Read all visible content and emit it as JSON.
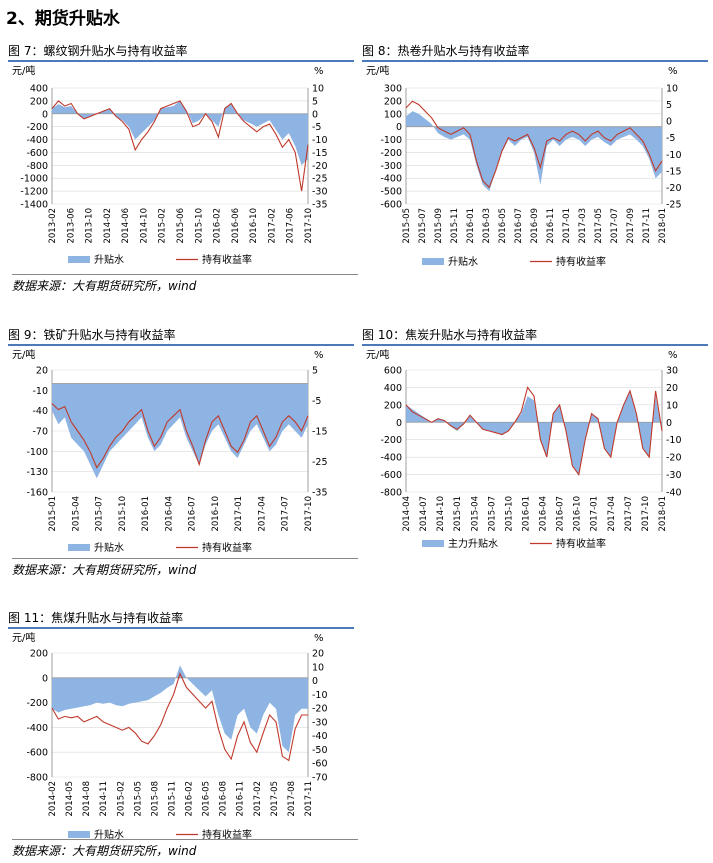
{
  "page": {
    "section_title": "2、期货升贴水"
  },
  "colors": {
    "basis_fill": "#8eb4e3",
    "return_line": "#c0392b",
    "grid": "#d9d9d9",
    "title_rule": "#4a7ab8"
  },
  "figures": [
    {
      "id": "fig7",
      "title": "图 7：螺纹钢升贴水与持有收益率",
      "source": "数据来源：大有期货研究所，wind",
      "chart_data": {
        "type": "area",
        "left_unit": "元/吨",
        "right_unit": "%",
        "ylim": [
          -1400,
          400
        ],
        "y2lim": [
          -35,
          10
        ],
        "yticks": [
          "400",
          "200",
          "0",
          "-200",
          "-400",
          "-600",
          "-800",
          "-1000",
          "-1200",
          "-1400"
        ],
        "y2ticks": [
          "10",
          "5",
          "0",
          "-5",
          "-10",
          "-15",
          "-20",
          "-25",
          "-30",
          "-35"
        ],
        "xticks": [
          "2013-02",
          "2013-06",
          "2013-10",
          "2014-02",
          "2014-06",
          "2014-10",
          "2015-02",
          "2015-06",
          "2015-10",
          "2016-02",
          "2016-06",
          "2016-10",
          "2017-02",
          "2017-06",
          "2017-10"
        ],
        "series": [
          {
            "name": "升贴水",
            "kind": "area",
            "axis": "left",
            "values": [
              80,
              150,
              100,
              120,
              0,
              -80,
              -50,
              0,
              50,
              80,
              -50,
              -100,
              -200,
              -400,
              -300,
              -200,
              -100,
              80,
              100,
              120,
              200,
              60,
              -150,
              -100,
              0,
              -100,
              -200,
              100,
              150,
              0,
              -100,
              -150,
              -200,
              -150,
              -100,
              -250,
              -400,
              -300,
              -500,
              -800,
              -700
            ]
          },
          {
            "name": "持有收益率",
            "kind": "line",
            "axis": "right",
            "values": [
              2,
              5,
              3,
              4,
              0,
              -2,
              -1,
              0,
              1,
              2,
              -1,
              -3,
              -6,
              -14,
              -10,
              -7,
              -3,
              2,
              3,
              4,
              5,
              1,
              -5,
              -4,
              0,
              -3,
              -9,
              2,
              4,
              0,
              -3,
              -5,
              -7,
              -5,
              -4,
              -8,
              -13,
              -10,
              -15,
              -30,
              -12
            ]
          }
        ]
      }
    },
    {
      "id": "fig8",
      "title": "图 8：热卷升贴水与持有收益率",
      "source": "",
      "chart_data": {
        "type": "area",
        "left_unit": "元/吨",
        "right_unit": "%",
        "ylim": [
          -600,
          300
        ],
        "y2lim": [
          -25,
          10
        ],
        "yticks": [
          "300",
          "200",
          "100",
          "0",
          "-100",
          "-200",
          "-300",
          "-400",
          "-500",
          "-600"
        ],
        "y2ticks": [
          "10",
          "5",
          "0",
          "-5",
          "-10",
          "-15",
          "-20",
          "-25"
        ],
        "xticks": [
          "2015-05",
          "2015-07",
          "2015-09",
          "2015-11",
          "2016-01",
          "2016-03",
          "2016-05",
          "2016-07",
          "2016-09",
          "2016-11",
          "2017-01",
          "2017-03",
          "2017-05",
          "2017-07",
          "2017-09",
          "2017-11",
          "2018-01"
        ],
        "series": [
          {
            "name": "升贴水",
            "kind": "area",
            "axis": "left",
            "values": [
              80,
              120,
              100,
              60,
              20,
              -50,
              -80,
              -100,
              -80,
              -60,
              -100,
              -300,
              -450,
              -500,
              -350,
              -200,
              -100,
              -150,
              -100,
              -80,
              -200,
              -450,
              -150,
              -100,
              -150,
              -100,
              -80,
              -100,
              -150,
              -100,
              -80,
              -120,
              -150,
              -100,
              -80,
              -60,
              -100,
              -150,
              -250,
              -400,
              -350
            ]
          },
          {
            "name": "持有收益率",
            "kind": "line",
            "axis": "right",
            "values": [
              4,
              6,
              5,
              3,
              1,
              -2,
              -3,
              -4,
              -3,
              -2,
              -4,
              -12,
              -18,
              -20,
              -15,
              -9,
              -5,
              -6,
              -5,
              -4,
              -8,
              -14,
              -6,
              -5,
              -6,
              -4,
              -3,
              -4,
              -6,
              -4,
              -3,
              -5,
              -6,
              -4,
              -3,
              -2,
              -4,
              -6,
              -10,
              -15,
              -12
            ]
          }
        ]
      }
    },
    {
      "id": "fig9",
      "title": "图 9：铁矿升贴水与持有收益率",
      "source": "数据来源：大有期货研究所，wind",
      "chart_data": {
        "type": "area",
        "left_unit": "元/吨",
        "right_unit": "%",
        "ylim": [
          -160,
          20
        ],
        "y2lim": [
          -35,
          5
        ],
        "yticks": [
          "20",
          "-10",
          "-40",
          "-70",
          "-100",
          "-130",
          "-160"
        ],
        "y2ticks": [
          "5",
          "-5",
          "-15",
          "-25",
          "-35"
        ],
        "xticks": [
          "2015-01",
          "2015-04",
          "2015-07",
          "2015-10",
          "2016-01",
          "2016-04",
          "2016-07",
          "2016-10",
          "2017-01",
          "2017-04",
          "2017-07",
          "2017-10"
        ],
        "series": [
          {
            "name": "升贴水",
            "kind": "area",
            "axis": "left",
            "values": [
              -40,
              -60,
              -50,
              -80,
              -90,
              -100,
              -120,
              -140,
              -120,
              -100,
              -90,
              -80,
              -70,
              -60,
              -50,
              -80,
              -100,
              -90,
              -70,
              -60,
              -50,
              -80,
              -100,
              -120,
              -90,
              -70,
              -60,
              -80,
              -100,
              -110,
              -90,
              -70,
              -60,
              -80,
              -100,
              -90,
              -70,
              -60,
              -70,
              -80,
              -60
            ]
          },
          {
            "name": "持有收益率",
            "kind": "line",
            "axis": "right",
            "values": [
              -6,
              -8,
              -7,
              -12,
              -15,
              -18,
              -22,
              -27,
              -24,
              -20,
              -17,
              -15,
              -12,
              -10,
              -8,
              -15,
              -20,
              -17,
              -12,
              -10,
              -8,
              -15,
              -20,
              -26,
              -18,
              -12,
              -10,
              -15,
              -20,
              -22,
              -18,
              -12,
              -10,
              -15,
              -20,
              -17,
              -12,
              -10,
              -12,
              -15,
              -10
            ]
          }
        ]
      }
    },
    {
      "id": "fig10",
      "title": "图 10：焦炭升贴水与持有收益率",
      "source": "",
      "chart_data": {
        "type": "area",
        "left_unit": "元/吨",
        "right_unit": "%",
        "ylim": [
          -800,
          600
        ],
        "y2lim": [
          -40,
          30
        ],
        "yticks": [
          "600",
          "400",
          "200",
          "0",
          "-200",
          "-400",
          "-600",
          "-800"
        ],
        "y2ticks": [
          "30",
          "20",
          "10",
          "0",
          "-10",
          "-20",
          "-30",
          "-40"
        ],
        "xticks": [
          "2014-04",
          "2014-07",
          "2014-10",
          "2015-01",
          "2015-04",
          "2015-07",
          "2015-10",
          "2016-01",
          "2016-04",
          "2016-07",
          "2016-10",
          "2017-01",
          "2017-04",
          "2017-07",
          "2017-10",
          "2018-01"
        ],
        "series": [
          {
            "name": "主力升贴水",
            "kind": "area",
            "axis": "left",
            "values": [
              200,
              150,
              100,
              50,
              0,
              50,
              20,
              -50,
              -100,
              -20,
              80,
              0,
              -80,
              -100,
              -120,
              -150,
              -100,
              0,
              100,
              300,
              250,
              -200,
              -400,
              100,
              200,
              -100,
              -500,
              -600,
              -200,
              100,
              50,
              -300,
              -400,
              0,
              200,
              350,
              100,
              -300,
              -400,
              300,
              -100
            ]
          },
          {
            "name": "持有收益率",
            "kind": "line",
            "axis": "right",
            "values": [
              10,
              6,
              4,
              2,
              0,
              2,
              1,
              -2,
              -4,
              -1,
              4,
              0,
              -4,
              -5,
              -6,
              -7,
              -5,
              0,
              6,
              20,
              15,
              -10,
              -20,
              5,
              10,
              -5,
              -25,
              -30,
              -10,
              5,
              2,
              -15,
              -20,
              0,
              10,
              18,
              5,
              -15,
              -20,
              18,
              -5
            ]
          }
        ]
      }
    },
    {
      "id": "fig11",
      "title": "图 11：焦煤升贴水与持有收益率",
      "source": "数据来源：大有期货研究所，wind",
      "chart_data": {
        "type": "area",
        "left_unit": "元/吨",
        "right_unit": "%",
        "ylim": [
          -800,
          200
        ],
        "y2lim": [
          -70,
          20
        ],
        "yticks": [
          "200",
          "0",
          "-200",
          "-400",
          "-600",
          "-800"
        ],
        "y2ticks": [
          "20",
          "10",
          "0",
          "-10",
          "-20",
          "-30",
          "-40",
          "-50",
          "-60",
          "-70"
        ],
        "xticks": [
          "2014-02",
          "2014-05",
          "2014-08",
          "2014-11",
          "2015-02",
          "2015-05",
          "2015-08",
          "2015-11",
          "2016-02",
          "2016-05",
          "2016-08",
          "2016-11",
          "2017-02",
          "2017-05",
          "2017-08",
          "2017-11"
        ],
        "series": [
          {
            "name": "升贴水",
            "kind": "area",
            "axis": "left",
            "values": [
              -250,
              -280,
              -260,
              -250,
              -240,
              -230,
              -220,
              -200,
              -210,
              -200,
              -220,
              -230,
              -210,
              -200,
              -190,
              -180,
              -150,
              -120,
              -80,
              -50,
              100,
              0,
              -50,
              -100,
              -150,
              -100,
              -300,
              -450,
              -500,
              -300,
              -250,
              -400,
              -450,
              -300,
              -200,
              -250,
              -550,
              -600,
              -300,
              -250,
              -250
            ]
          },
          {
            "name": "持有收益率",
            "kind": "line",
            "axis": "right",
            "values": [
              -20,
              -28,
              -26,
              -27,
              -26,
              -30,
              -28,
              -26,
              -30,
              -32,
              -34,
              -36,
              -34,
              -38,
              -44,
              -46,
              -40,
              -32,
              -20,
              -10,
              5,
              -5,
              -10,
              -15,
              -20,
              -15,
              -35,
              -50,
              -57,
              -40,
              -30,
              -45,
              -52,
              -38,
              -25,
              -30,
              -55,
              -58,
              -35,
              -25,
              -25
            ]
          }
        ]
      }
    }
  ]
}
